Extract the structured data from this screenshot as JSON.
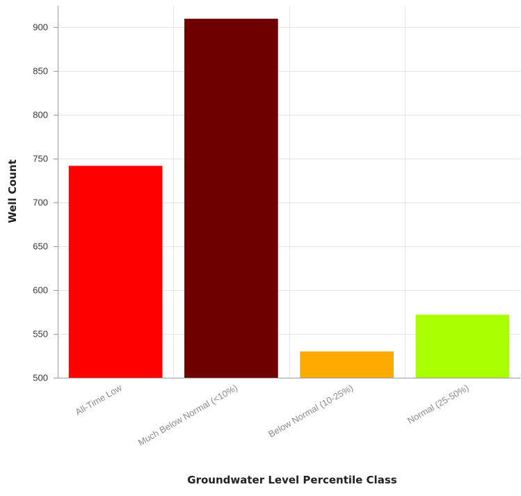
{
  "chart_data": {
    "type": "bar",
    "categories": [
      "All-Time Low",
      "Much Below Normal (<10%)",
      "Below Normal (10-25%)",
      "Normal (25-50%)"
    ],
    "values": [
      742,
      910,
      530,
      572
    ],
    "colors": [
      "#ff0000",
      "#6e0000",
      "#ffaa00",
      "#aaff00"
    ],
    "xlabel": "Groundwater Level Percentile Class",
    "ylabel": "Well Count",
    "ylim": [
      500,
      925
    ],
    "yticks": [
      500,
      550,
      600,
      650,
      700,
      750,
      800,
      850,
      900
    ],
    "grid": true
  }
}
